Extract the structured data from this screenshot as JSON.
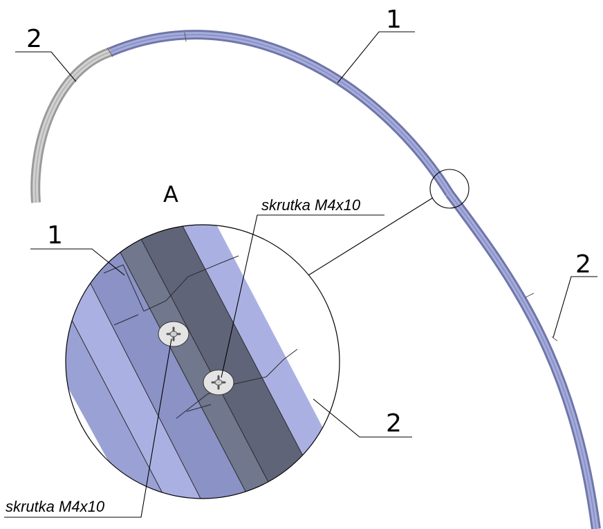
{
  "callouts": {
    "part_1_top": "1",
    "part_2_top_left": "2",
    "part_2_right": "2",
    "detail_letter": "A",
    "detail_part_1": "1",
    "detail_part_2": "2",
    "screw_top": "skrutka M4x10",
    "screw_bottom": "skrutka M4x10"
  },
  "colors": {
    "profile_blue": "#9ea6d8",
    "profile_blue_dark": "#6f76a8",
    "profile_blue_mid": "#8a92c6",
    "profile_grey": "#c8c8c8",
    "profile_grey_dark": "#9a9a9a",
    "detail_dark": "#5f6478",
    "detail_dark_side": "#71778d",
    "screw_head": "#e4e4e4"
  },
  "icons": {
    "screw": "phillips-screw-icon",
    "detail_circle": "detail-circle-icon"
  }
}
